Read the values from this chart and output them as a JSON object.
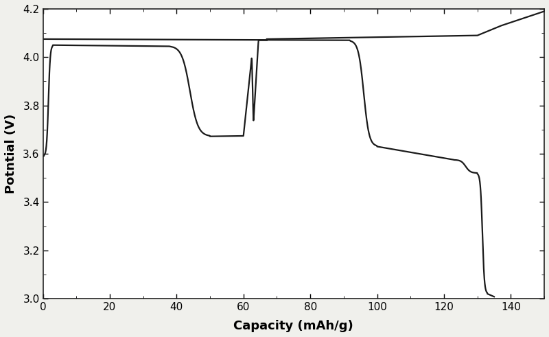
{
  "title": "",
  "xlabel": "Capacity (mAh/g)",
  "ylabel": "Potntial (V)",
  "xlim": [
    0,
    150
  ],
  "ylim": [
    3.0,
    4.2
  ],
  "xticks": [
    0,
    20,
    40,
    60,
    80,
    100,
    120,
    140
  ],
  "yticks": [
    3.0,
    3.2,
    3.4,
    3.6,
    3.8,
    4.0,
    4.2
  ],
  "line_color": "#1a1a1a",
  "line_width": 1.6,
  "bg_color": "#f0f0ec"
}
